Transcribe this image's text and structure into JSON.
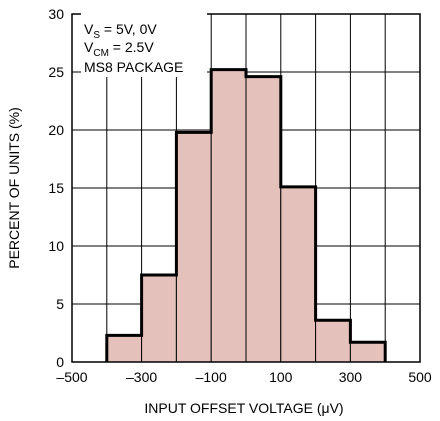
{
  "chart_data": {
    "type": "bar",
    "style": "histogram",
    "bin_edges": [
      -400,
      -300,
      -200,
      -100,
      0,
      100,
      200,
      300,
      400
    ],
    "values": [
      2.3,
      7.5,
      19.8,
      25.2,
      24.6,
      15.1,
      3.6,
      1.7
    ],
    "xlabel": "INPUT OFFSET VOLTAGE (μV)",
    "ylabel": "PERCENT OF UNITS (%)",
    "xlim": [
      -500,
      500
    ],
    "ylim": [
      0,
      30
    ],
    "xticks": [
      "–500",
      "–300",
      "–100",
      "100",
      "300",
      "500"
    ],
    "yticks": [
      "0",
      "5",
      "10",
      "15",
      "20",
      "25",
      "30"
    ],
    "grid": true,
    "bar_fill": "#e5c1bb",
    "annotations": [
      {
        "main": "V",
        "sub": "S",
        "rest": " = 5V, 0V"
      },
      {
        "main": "V",
        "sub": "CM",
        "rest": " = 2.5V"
      },
      {
        "main": "MS8 PACKAGE",
        "sub": "",
        "rest": ""
      }
    ]
  }
}
